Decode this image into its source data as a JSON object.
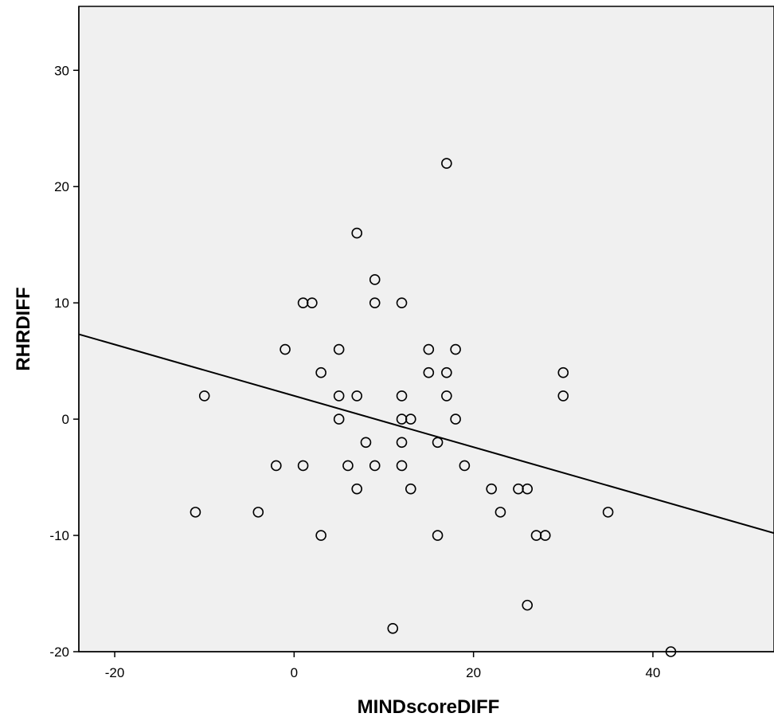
{
  "chart_data": {
    "type": "scatter",
    "title": "",
    "xlabel": "MINDscoreDIFF",
    "ylabel": "RHRDIFF",
    "xlim": [
      -24,
      53.5
    ],
    "ylim": [
      -20,
      35.5
    ],
    "xticks": [
      -20,
      0,
      20,
      40
    ],
    "yticks": [
      -20,
      -10,
      0,
      10,
      20,
      30
    ],
    "grid": false,
    "plot_background": "#f0f0f0",
    "marker_color": "#000000",
    "marker_shape": "hollow-circle",
    "fit_line": {
      "x": [
        -24,
        53.5
      ],
      "y": [
        7.3,
        -9.8
      ]
    },
    "points": [
      {
        "x": 17,
        "y": 22
      },
      {
        "x": 7,
        "y": 16
      },
      {
        "x": 9,
        "y": 12
      },
      {
        "x": 1,
        "y": 10
      },
      {
        "x": 2,
        "y": 10
      },
      {
        "x": 9,
        "y": 10
      },
      {
        "x": 12,
        "y": 10
      },
      {
        "x": -1,
        "y": 6
      },
      {
        "x": 5,
        "y": 6
      },
      {
        "x": 15,
        "y": 6
      },
      {
        "x": 18,
        "y": 6
      },
      {
        "x": 3,
        "y": 4
      },
      {
        "x": 15,
        "y": 4
      },
      {
        "x": 17,
        "y": 4
      },
      {
        "x": 30,
        "y": 4
      },
      {
        "x": -10,
        "y": 2
      },
      {
        "x": 5,
        "y": 2
      },
      {
        "x": 7,
        "y": 2
      },
      {
        "x": 12,
        "y": 2
      },
      {
        "x": 17,
        "y": 2
      },
      {
        "x": 30,
        "y": 2
      },
      {
        "x": 5,
        "y": 0
      },
      {
        "x": 12,
        "y": 0
      },
      {
        "x": 13,
        "y": 0
      },
      {
        "x": 18,
        "y": 0
      },
      {
        "x": 8,
        "y": -2
      },
      {
        "x": 12,
        "y": -2
      },
      {
        "x": 16,
        "y": -2
      },
      {
        "x": -2,
        "y": -4
      },
      {
        "x": 1,
        "y": -4
      },
      {
        "x": 6,
        "y": -4
      },
      {
        "x": 9,
        "y": -4
      },
      {
        "x": 12,
        "y": -4
      },
      {
        "x": 19,
        "y": -4
      },
      {
        "x": 7,
        "y": -6
      },
      {
        "x": 13,
        "y": -6
      },
      {
        "x": 22,
        "y": -6
      },
      {
        "x": 25,
        "y": -6
      },
      {
        "x": 26,
        "y": -6
      },
      {
        "x": -11,
        "y": -8
      },
      {
        "x": -4,
        "y": -8
      },
      {
        "x": 23,
        "y": -8
      },
      {
        "x": 35,
        "y": -8
      },
      {
        "x": 3,
        "y": -10
      },
      {
        "x": 16,
        "y": -10
      },
      {
        "x": 27,
        "y": -10
      },
      {
        "x": 28,
        "y": -10
      },
      {
        "x": 26,
        "y": -16
      },
      {
        "x": 11,
        "y": -18
      },
      {
        "x": 42,
        "y": -20
      }
    ]
  }
}
